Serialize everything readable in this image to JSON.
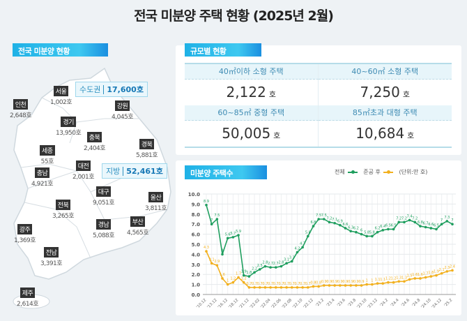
{
  "title": "전국 미분양 주택 현황  (2025년 2월)",
  "map_section": {
    "tab": "전국 미분양 현황",
    "capital": {
      "label": "수도권",
      "value": "17,600호"
    },
    "provinces": {
      "label": "지방",
      "value": "52,461호"
    },
    "regions": [
      {
        "name": "서울",
        "value": "1,002호"
      },
      {
        "name": "인천",
        "value": "2,648호"
      },
      {
        "name": "강원",
        "value": "4,045호"
      },
      {
        "name": "경기",
        "value": "13,950호"
      },
      {
        "name": "충북",
        "value": "2,404호"
      },
      {
        "name": "경북",
        "value": "5,881호"
      },
      {
        "name": "세종",
        "value": "55호"
      },
      {
        "name": "대전",
        "value": "2,001호"
      },
      {
        "name": "충남",
        "value": "4,921호"
      },
      {
        "name": "대구",
        "value": "9,051호"
      },
      {
        "name": "울산",
        "value": "3,811호"
      },
      {
        "name": "전북",
        "value": "3,265호"
      },
      {
        "name": "경남",
        "value": "5,088호"
      },
      {
        "name": "부산",
        "value": "4,565호"
      },
      {
        "name": "광주",
        "value": "1,369호"
      },
      {
        "name": "전남",
        "value": "3,391호"
      },
      {
        "name": "제주",
        "value": "2,614호"
      }
    ]
  },
  "size_section": {
    "tab": "규모별 현황",
    "unit": "호",
    "items": [
      {
        "label": "40㎡이하 소형 주택",
        "value": "2,122"
      },
      {
        "label": "40~60㎡ 소형 주택",
        "value": "7,250"
      },
      {
        "label": "60~85㎡ 중형 주택",
        "value": "50,005"
      },
      {
        "label": "85㎡초과 대형 주택",
        "value": "10,684"
      }
    ]
  },
  "chart_section": {
    "tab": "미분양 주택수",
    "unit_note": "(단위:만 호)"
  },
  "chart_data": {
    "type": "line",
    "ylim": [
      0,
      10
    ],
    "yticks": [
      "0.0",
      "1.0",
      "2.0",
      "3.0",
      "4.0",
      "5.0",
      "6.0",
      "7.0",
      "8.0",
      "9.0",
      "10.0"
    ],
    "xtick_labels": [
      "'10.12",
      "'13.12",
      "'16.12",
      "'18.12",
      "'21.12",
      "'22.02",
      "'22.04",
      "'22.06",
      "'22.08",
      "'22.10",
      "'22.12",
      "'23.2",
      "'23.4",
      "'23.6",
      "'23.8",
      "'23.10",
      "'23.12",
      "'24.2",
      "'24.4",
      "'24.6",
      "'24.8",
      "'24.10",
      "'24.12",
      "'25.2"
    ],
    "grid": true,
    "legend": "top-right",
    "series": [
      {
        "name": "전체",
        "color": "#1e9e5e",
        "values": [
          8.9,
          7.0,
          7.5,
          4.0,
          5.6,
          5.7,
          5.9,
          1.9,
          1.8,
          2.2,
          2.5,
          2.8,
          2.7,
          2.7,
          2.8,
          3.1,
          3.3,
          4.2,
          4.7,
          5.8,
          6.8,
          7.5,
          7.5,
          7.2,
          7.1,
          6.9,
          6.6,
          6.3,
          6.2,
          6.0,
          5.8,
          5.8,
          6.2,
          6.4,
          6.5,
          6.5,
          7.2,
          7.2,
          7.4,
          7.2,
          6.8,
          6.7,
          6.6,
          6.5,
          7.0,
          7.3,
          7.0
        ]
      },
      {
        "name": "준공 후",
        "color": "#f2b01e",
        "values": [
          4.3,
          3.1,
          2.9,
          1.6,
          1.0,
          1.2,
          1.7,
          1.2,
          0.7,
          0.7,
          0.7,
          0.7,
          0.7,
          0.7,
          0.7,
          0.7,
          0.7,
          0.7,
          0.7,
          0.7,
          0.8,
          0.8,
          0.9,
          0.9,
          0.9,
          0.9,
          0.9,
          0.9,
          0.9,
          0.9,
          1.0,
          1.0,
          1.1,
          1.1,
          1.2,
          1.2,
          1.3,
          1.3,
          1.5,
          1.6,
          1.6,
          1.7,
          1.8,
          1.9,
          2.1,
          2.3,
          2.4
        ]
      }
    ]
  }
}
